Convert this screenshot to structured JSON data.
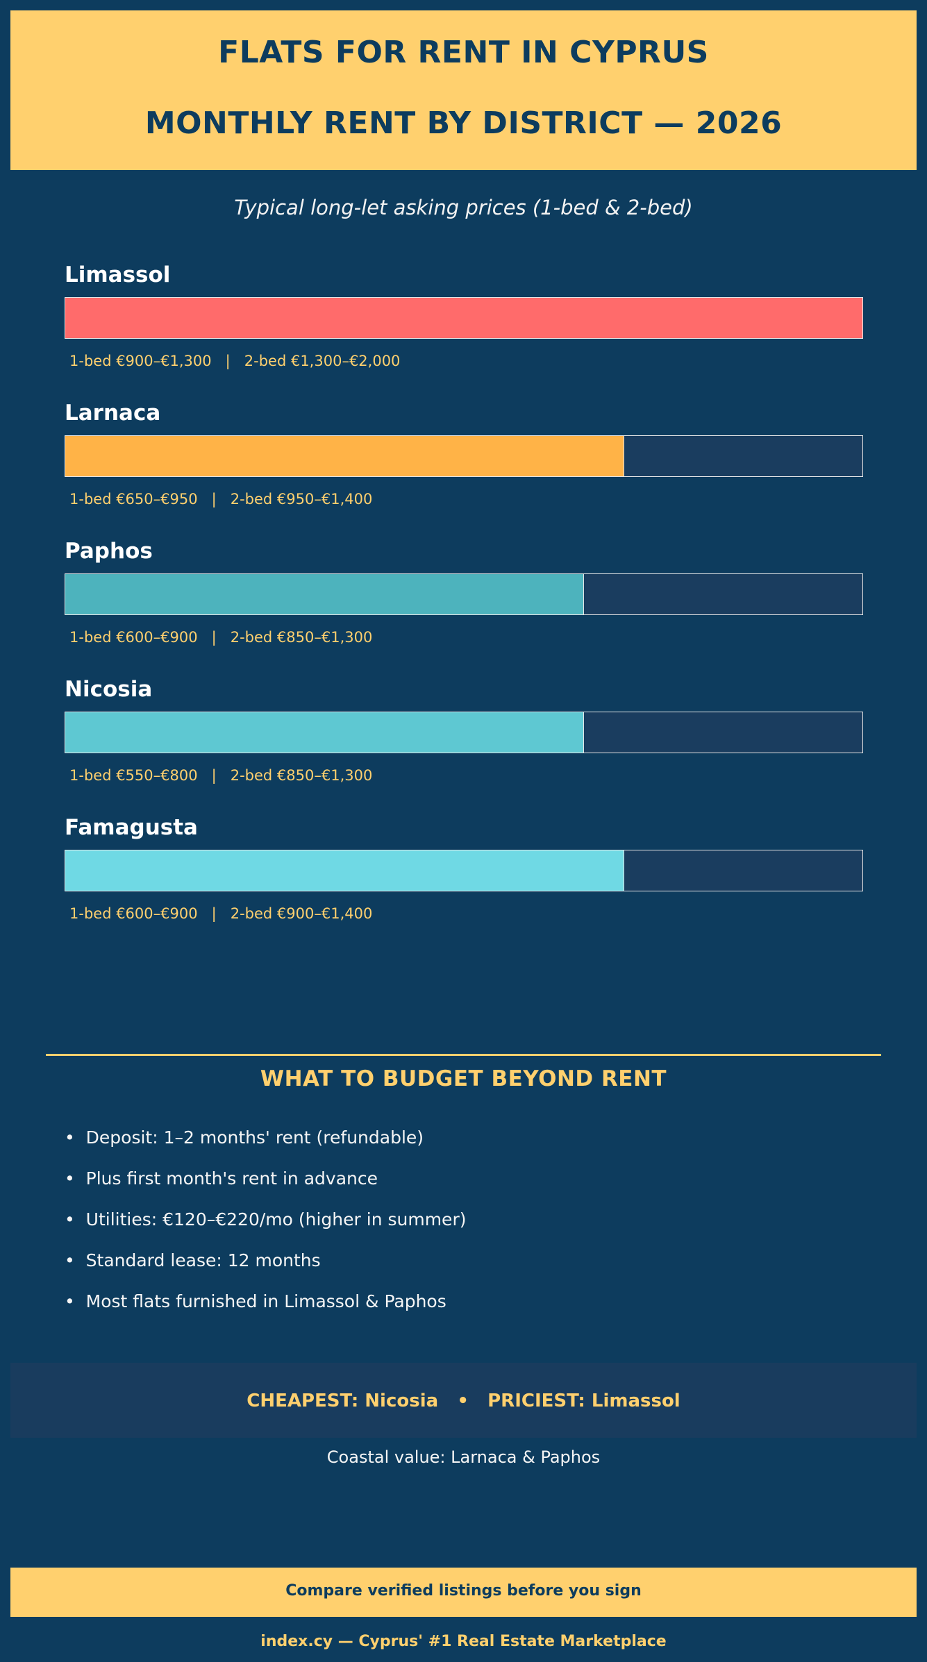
{
  "header": {
    "title_line1": "FLATS FOR RENT IN CYPRUS",
    "title_line2": "MONTHLY RENT BY DISTRICT — 2026"
  },
  "subtitle": "Typical long-let asking prices (1-bed & 2-bed)",
  "chart_data": {
    "type": "bar",
    "orientation": "horizontal",
    "title": "MONTHLY RENT BY DISTRICT — 2026",
    "categories": [
      "Limassol",
      "Larnaca",
      "Paphos",
      "Nicosia",
      "Famagusta"
    ],
    "values": [
      2000,
      1400,
      1300,
      1300,
      1400
    ],
    "xlim": [
      0,
      2000
    ],
    "unit": "€/month",
    "bar_colors": [
      "#ff6b6b",
      "#ffb347",
      "#4db3bd",
      "#5ec8d2",
      "#6fd9e4"
    ],
    "track_color": "#1a3d5f",
    "districts": [
      {
        "name": "Limassol",
        "bed1": "1-bed €900–€1,300",
        "bed2": "2-bed €1,300–€2,000"
      },
      {
        "name": "Larnaca",
        "bed1": "1-bed €650–€950",
        "bed2": "2-bed €950–€1,400"
      },
      {
        "name": "Paphos",
        "bed1": "1-bed €600–€900",
        "bed2": "2-bed €850–€1,300"
      },
      {
        "name": "Nicosia",
        "bed1": "1-bed €550–€800",
        "bed2": "2-bed €850–€1,300"
      },
      {
        "name": "Famagusta",
        "bed1": "1-bed €600–€900",
        "bed2": "2-bed €900–€1,400"
      }
    ],
    "grid": false,
    "legend": "none"
  },
  "budget": {
    "title": "WHAT TO BUDGET BEYOND RENT",
    "bullet": "•",
    "items": [
      "Deposit: 1–2 months' rent (refundable)",
      "Plus first month's rent in advance",
      "Utilities: €120–€220/mo (higher in summer)",
      "Standard lease: 12 months",
      "Most flats furnished in Limassol & Paphos"
    ]
  },
  "summary": {
    "cheapest": "CHEAPEST: Nicosia",
    "separator": "•",
    "priciest": "PRICIEST: Limassol",
    "coastal": "Coastal value: Larnaca & Paphos"
  },
  "cta": "Compare verified listings before you sign",
  "footer": "index.cy — Cyprus' #1 Real Estate Marketplace",
  "colors": {
    "background": "#0d3c5e",
    "accent": "#ffd06e",
    "text": "#f5f5f5"
  }
}
